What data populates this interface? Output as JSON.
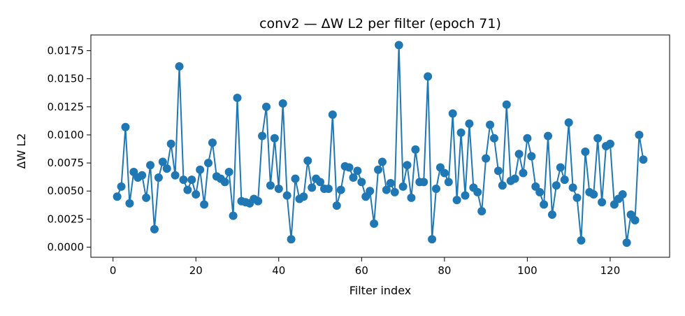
{
  "chart_data": {
    "type": "line",
    "title": "conv2 — ΔW L2 per filter (epoch 71)",
    "xlabel": "Filter index",
    "ylabel": "ΔW L2",
    "xlim": [
      -5.35,
      134.35
    ],
    "ylim": [
      -0.0009,
      0.0189
    ],
    "x_ticks": [
      0,
      20,
      40,
      60,
      80,
      100,
      120
    ],
    "y_ticks": [
      0.0,
      0.0025,
      0.005,
      0.0075,
      0.01,
      0.0125,
      0.015,
      0.0175
    ],
    "y_tick_labels": [
      "0.0000",
      "0.0025",
      "0.0050",
      "0.0075",
      "0.0100",
      "0.0125",
      "0.0150",
      "0.0175"
    ],
    "grid": false,
    "legend": "none",
    "color": "#1f77b4",
    "series": [
      {
        "marker": "circle",
        "x": [
          1,
          2,
          3,
          4,
          5,
          6,
          7,
          8,
          9,
          10,
          11,
          12,
          13,
          14,
          15,
          16,
          17,
          18,
          19,
          20,
          21,
          22,
          23,
          24,
          25,
          26,
          27,
          28,
          29,
          30,
          31,
          32,
          33,
          34,
          35,
          36,
          37,
          38,
          39,
          40,
          41,
          42,
          43,
          44,
          45,
          46,
          47,
          48,
          49,
          50,
          51,
          52,
          53,
          54,
          55,
          56,
          57,
          58,
          59,
          60,
          61,
          62,
          63,
          64,
          65,
          66,
          67,
          68,
          69,
          70,
          71,
          72,
          73,
          74,
          75,
          76,
          77,
          78,
          79,
          80,
          81,
          82,
          83,
          84,
          85,
          86,
          87,
          88,
          89,
          90,
          91,
          92,
          93,
          94,
          95,
          96,
          97,
          98,
          99,
          100,
          101,
          102,
          103,
          104,
          105,
          106,
          107,
          108,
          109,
          110,
          111,
          112,
          113,
          114,
          115,
          116,
          117,
          118,
          119,
          120,
          121,
          122,
          123,
          124,
          125,
          126,
          127,
          128
        ],
        "values": [
          0.0045,
          0.0054,
          0.0107,
          0.0039,
          0.0067,
          0.0062,
          0.0064,
          0.0044,
          0.0073,
          0.0016,
          0.0062,
          0.0076,
          0.007,
          0.0092,
          0.0064,
          0.0161,
          0.006,
          0.0051,
          0.006,
          0.0047,
          0.0069,
          0.0038,
          0.0075,
          0.0093,
          0.0063,
          0.0061,
          0.0058,
          0.0067,
          0.0028,
          0.0133,
          0.0041,
          0.004,
          0.0039,
          0.0043,
          0.0041,
          0.0099,
          0.0125,
          0.0055,
          0.0097,
          0.0052,
          0.0128,
          0.0046,
          0.0007,
          0.0061,
          0.0043,
          0.0045,
          0.0077,
          0.0053,
          0.0061,
          0.0058,
          0.0052,
          0.0052,
          0.0118,
          0.0037,
          0.0051,
          0.0072,
          0.0071,
          0.0062,
          0.0068,
          0.0058,
          0.0045,
          0.005,
          0.0021,
          0.0069,
          0.0076,
          0.0051,
          0.0057,
          0.0049,
          0.018,
          0.0054,
          0.0073,
          0.0044,
          0.0087,
          0.0058,
          0.0058,
          0.0152,
          0.0007,
          0.0052,
          0.0071,
          0.0066,
          0.0058,
          0.0119,
          0.0042,
          0.0102,
          0.0046,
          0.011,
          0.0053,
          0.0049,
          0.0032,
          0.0079,
          0.0109,
          0.0097,
          0.0068,
          0.0055,
          0.0127,
          0.0059,
          0.0061,
          0.0083,
          0.0066,
          0.0097,
          0.0081,
          0.0054,
          0.0049,
          0.0038,
          0.0099,
          0.0029,
          0.0055,
          0.0071,
          0.006,
          0.0111,
          0.0053,
          0.0044,
          0.0006,
          0.0085,
          0.0049,
          0.0047,
          0.0097,
          0.004,
          0.009,
          0.0092,
          0.0038,
          0.0043,
          0.0047,
          0.0004,
          0.0029,
          0.0024,
          0.01,
          0.0078
        ]
      }
    ]
  }
}
